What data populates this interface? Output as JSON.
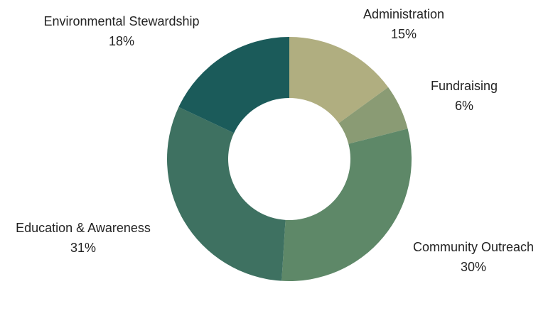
{
  "chart_data": {
    "type": "pie",
    "donut": true,
    "categories": [
      "Administration",
      "Fundraising",
      "Community Outreach",
      "Education & Awareness",
      "Environmental Stewardship"
    ],
    "values": [
      15,
      6,
      30,
      31,
      18
    ],
    "value_labels": [
      "15%",
      "6%",
      "30%",
      "31%",
      "18%"
    ],
    "colors": [
      "#b0ae80",
      "#8a9b74",
      "#5e8868",
      "#3e7161",
      "#1b5b5a"
    ],
    "start_angle_deg": 0,
    "direction": "clockwise",
    "legend": "none",
    "title": ""
  }
}
